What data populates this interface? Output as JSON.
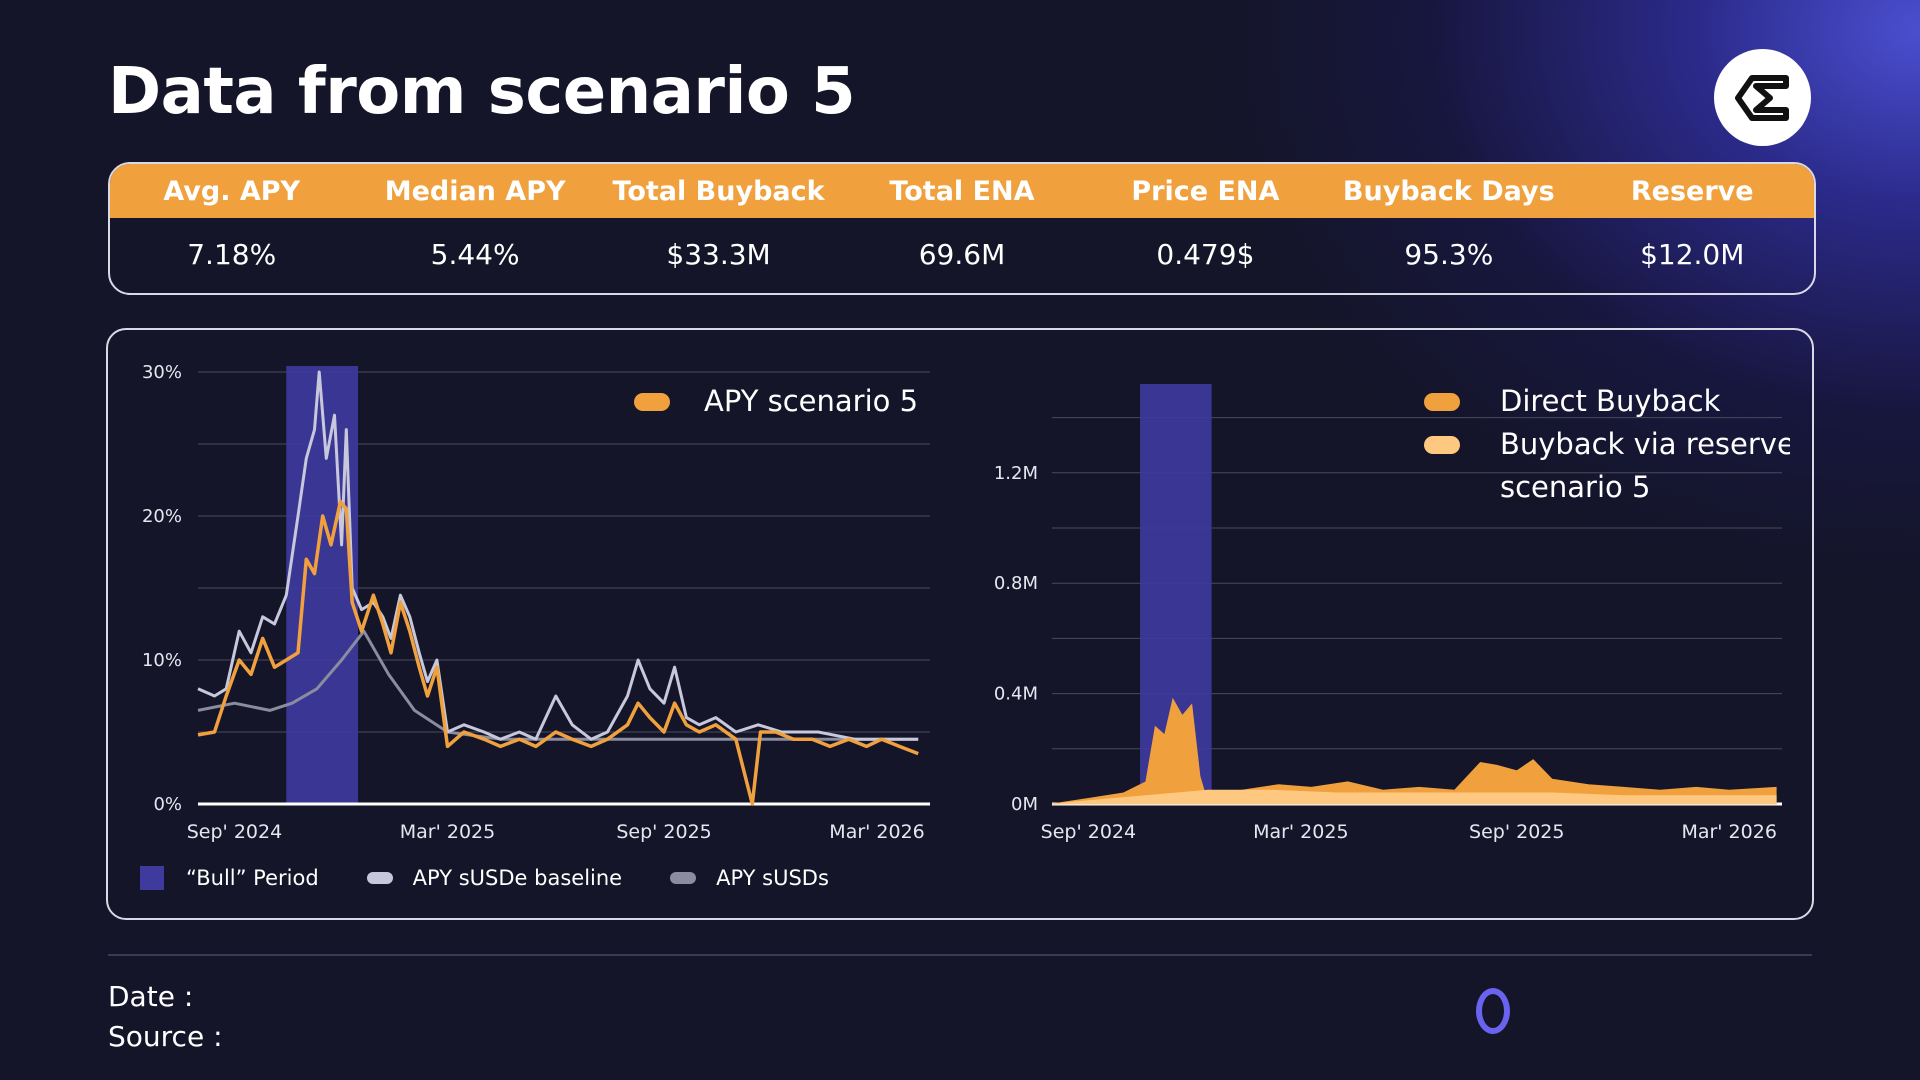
{
  "title": "Data from scenario 5",
  "logo_icon": "sigma-diamond-icon",
  "stats": {
    "headers": [
      "Avg. APY",
      "Median APY",
      "Total Buyback",
      "Total ENA",
      "Price ENA",
      "Buyback Days",
      "Reserve"
    ],
    "values": [
      "7.18%",
      "5.44%",
      "$33.3M",
      "69.6M",
      "0.479$",
      "95.3%",
      "$12.0M"
    ]
  },
  "colors": {
    "accent": "#f0a13e",
    "light_orange": "#ffc880",
    "bull": "#3e3a9e",
    "gray": "#8c8ca0",
    "light_gray": "#c8c8dc"
  },
  "chart_data": [
    {
      "type": "line",
      "x_tick_labels": [
        "Sep' 2024",
        "Mar' 2025",
        "Sep' 2025",
        "Mar' 2026"
      ],
      "y_tick_labels": [
        "0%",
        "10%",
        "20%",
        "30%"
      ],
      "ylim": [
        0,
        30
      ],
      "xlim": [
        "2024-08-01",
        "2026-04-15"
      ],
      "shaded_region": {
        "name": "“Bull” Period",
        "from": "2024-10-15",
        "to": "2024-12-15"
      },
      "legend_top": "APY scenario 5",
      "series": [
        {
          "name": "APY scenario 5",
          "color": "#f0a13e",
          "points": [
            [
              "2024-08-01",
              4.8
            ],
            [
              "2024-08-15",
              5.0
            ],
            [
              "2024-08-25",
              7.5
            ],
            [
              "2024-09-05",
              10.0
            ],
            [
              "2024-09-15",
              9.0
            ],
            [
              "2024-09-25",
              11.5
            ],
            [
              "2024-10-05",
              9.5
            ],
            [
              "2024-10-15",
              10.0
            ],
            [
              "2024-10-25",
              10.5
            ],
            [
              "2024-11-01",
              17.0
            ],
            [
              "2024-11-08",
              16.0
            ],
            [
              "2024-11-15",
              20.0
            ],
            [
              "2024-11-22",
              18.0
            ],
            [
              "2024-11-30",
              21.0
            ],
            [
              "2024-12-05",
              20.5
            ],
            [
              "2024-12-10",
              14.0
            ],
            [
              "2024-12-18",
              12.0
            ],
            [
              "2024-12-28",
              14.5
            ],
            [
              "2025-01-05",
              12.5
            ],
            [
              "2025-01-12",
              10.5
            ],
            [
              "2025-01-20",
              14.0
            ],
            [
              "2025-01-28",
              12.0
            ],
            [
              "2025-02-05",
              9.5
            ],
            [
              "2025-02-12",
              7.5
            ],
            [
              "2025-02-20",
              9.5
            ],
            [
              "2025-03-01",
              4.0
            ],
            [
              "2025-03-15",
              5.0
            ],
            [
              "2025-04-01",
              4.5
            ],
            [
              "2025-04-15",
              4.0
            ],
            [
              "2025-05-01",
              4.5
            ],
            [
              "2025-05-15",
              4.0
            ],
            [
              "2025-06-01",
              5.0
            ],
            [
              "2025-06-15",
              4.5
            ],
            [
              "2025-07-01",
              4.0
            ],
            [
              "2025-07-15",
              4.5
            ],
            [
              "2025-08-01",
              5.5
            ],
            [
              "2025-08-10",
              7.0
            ],
            [
              "2025-08-20",
              6.0
            ],
            [
              "2025-09-01",
              5.0
            ],
            [
              "2025-09-10",
              7.0
            ],
            [
              "2025-09-20",
              5.5
            ],
            [
              "2025-10-01",
              5.0
            ],
            [
              "2025-10-15",
              5.5
            ],
            [
              "2025-11-01",
              4.5
            ],
            [
              "2025-11-15",
              0.0
            ],
            [
              "2025-11-22",
              5.0
            ],
            [
              "2025-12-05",
              5.0
            ],
            [
              "2025-12-20",
              4.5
            ],
            [
              "2026-01-05",
              4.5
            ],
            [
              "2026-01-20",
              4.0
            ],
            [
              "2026-02-05",
              4.5
            ],
            [
              "2026-02-20",
              4.0
            ],
            [
              "2026-03-05",
              4.5
            ],
            [
              "2026-03-20",
              4.0
            ],
            [
              "2026-04-05",
              3.5
            ]
          ]
        },
        {
          "name": "APY sUSDe baseline",
          "color": "#c8c8dc",
          "points": [
            [
              "2024-08-01",
              8.0
            ],
            [
              "2024-08-15",
              7.5
            ],
            [
              "2024-08-25",
              8.0
            ],
            [
              "2024-09-05",
              12.0
            ],
            [
              "2024-09-15",
              10.5
            ],
            [
              "2024-09-25",
              13.0
            ],
            [
              "2024-10-05",
              12.5
            ],
            [
              "2024-10-15",
              14.5
            ],
            [
              "2024-10-25",
              20.0
            ],
            [
              "2024-11-01",
              24.0
            ],
            [
              "2024-11-08",
              26.0
            ],
            [
              "2024-11-12",
              30.0
            ],
            [
              "2024-11-18",
              24.0
            ],
            [
              "2024-11-25",
              27.0
            ],
            [
              "2024-12-01",
              18.0
            ],
            [
              "2024-12-05",
              26.0
            ],
            [
              "2024-12-10",
              15.0
            ],
            [
              "2024-12-18",
              13.5
            ],
            [
              "2024-12-28",
              14.0
            ],
            [
              "2025-01-05",
              13.0
            ],
            [
              "2025-01-12",
              11.5
            ],
            [
              "2025-01-20",
              14.5
            ],
            [
              "2025-01-28",
              13.0
            ],
            [
              "2025-02-05",
              10.5
            ],
            [
              "2025-02-12",
              8.5
            ],
            [
              "2025-02-20",
              10.0
            ],
            [
              "2025-03-01",
              5.0
            ],
            [
              "2025-03-15",
              5.5
            ],
            [
              "2025-04-01",
              5.0
            ],
            [
              "2025-04-15",
              4.5
            ],
            [
              "2025-05-01",
              5.0
            ],
            [
              "2025-05-15",
              4.5
            ],
            [
              "2025-06-01",
              7.5
            ],
            [
              "2025-06-15",
              5.5
            ],
            [
              "2025-07-01",
              4.5
            ],
            [
              "2025-07-15",
              5.0
            ],
            [
              "2025-08-01",
              7.5
            ],
            [
              "2025-08-10",
              10.0
            ],
            [
              "2025-08-20",
              8.0
            ],
            [
              "2025-09-01",
              7.0
            ],
            [
              "2025-09-10",
              9.5
            ],
            [
              "2025-09-20",
              6.0
            ],
            [
              "2025-10-01",
              5.5
            ],
            [
              "2025-10-15",
              6.0
            ],
            [
              "2025-11-01",
              5.0
            ],
            [
              "2025-11-20",
              5.5
            ],
            [
              "2025-12-10",
              5.0
            ],
            [
              "2026-01-10",
              5.0
            ],
            [
              "2026-02-10",
              4.5
            ],
            [
              "2026-03-10",
              4.5
            ],
            [
              "2026-04-05",
              4.5
            ]
          ]
        },
        {
          "name": "APY sUSDs",
          "color": "#8c8ca0",
          "points": [
            [
              "2024-08-01",
              6.5
            ],
            [
              "2024-09-01",
              7.0
            ],
            [
              "2024-10-01",
              6.5
            ],
            [
              "2024-10-20",
              7.0
            ],
            [
              "2024-11-10",
              8.0
            ],
            [
              "2024-12-01",
              10.0
            ],
            [
              "2024-12-20",
              12.0
            ],
            [
              "2025-01-10",
              9.0
            ],
            [
              "2025-02-01",
              6.5
            ],
            [
              "2025-03-01",
              5.0
            ],
            [
              "2025-04-15",
              4.5
            ],
            [
              "2025-06-01",
              4.5
            ],
            [
              "2025-08-01",
              4.5
            ],
            [
              "2025-10-01",
              4.5
            ],
            [
              "2025-12-01",
              4.5
            ],
            [
              "2026-02-01",
              4.5
            ],
            [
              "2026-04-05",
              4.5
            ]
          ]
        }
      ]
    },
    {
      "type": "area",
      "x_tick_labels": [
        "Sep' 2024",
        "Mar' 2025",
        "Sep' 2025",
        "Mar' 2026"
      ],
      "y_tick_labels": [
        "0M",
        "0.4M",
        "0.8M",
        "1.2M"
      ],
      "ylim": [
        0,
        1.5
      ],
      "xlim": [
        "2024-08-01",
        "2026-04-15"
      ],
      "shaded_region": {
        "name": "“Bull” Period",
        "from": "2024-10-15",
        "to": "2024-12-15"
      },
      "legend": [
        "Direct Buyback",
        "Buyback via reserve",
        "scenario 5"
      ],
      "series": [
        {
          "name": "Direct Buyback",
          "color": "#f0a13e",
          "points": [
            [
              "2024-08-01",
              0.0
            ],
            [
              "2024-09-01",
              0.02
            ],
            [
              "2024-10-01",
              0.04
            ],
            [
              "2024-10-20",
              0.08
            ],
            [
              "2024-10-28",
              0.28
            ],
            [
              "2024-11-05",
              0.25
            ],
            [
              "2024-11-12",
              0.38
            ],
            [
              "2024-11-20",
              0.32
            ],
            [
              "2024-11-28",
              0.36
            ],
            [
              "2024-12-05",
              0.1
            ],
            [
              "2024-12-12",
              0.0
            ],
            [
              "2025-01-10",
              0.05
            ],
            [
              "2025-02-10",
              0.07
            ],
            [
              "2025-03-10",
              0.06
            ],
            [
              "2025-04-10",
              0.08
            ],
            [
              "2025-05-10",
              0.05
            ],
            [
              "2025-06-10",
              0.06
            ],
            [
              "2025-07-10",
              0.05
            ],
            [
              "2025-08-01",
              0.15
            ],
            [
              "2025-08-15",
              0.14
            ],
            [
              "2025-09-01",
              0.12
            ],
            [
              "2025-09-15",
              0.16
            ],
            [
              "2025-10-01",
              0.09
            ],
            [
              "2025-11-01",
              0.07
            ],
            [
              "2025-12-01",
              0.06
            ],
            [
              "2026-01-01",
              0.05
            ],
            [
              "2026-02-01",
              0.06
            ],
            [
              "2026-03-01",
              0.05
            ],
            [
              "2026-04-10",
              0.06
            ]
          ]
        },
        {
          "name": "Buyback via reserve",
          "color": "#ffc880",
          "points": [
            [
              "2024-08-01",
              0.0
            ],
            [
              "2024-12-12",
              0.05
            ],
            [
              "2025-02-01",
              0.05
            ],
            [
              "2025-04-01",
              0.04
            ],
            [
              "2025-06-01",
              0.04
            ],
            [
              "2025-08-01",
              0.04
            ],
            [
              "2025-10-01",
              0.04
            ],
            [
              "2025-12-01",
              0.03
            ],
            [
              "2026-02-01",
              0.03
            ],
            [
              "2026-04-10",
              0.03
            ]
          ]
        }
      ]
    }
  ]
}
